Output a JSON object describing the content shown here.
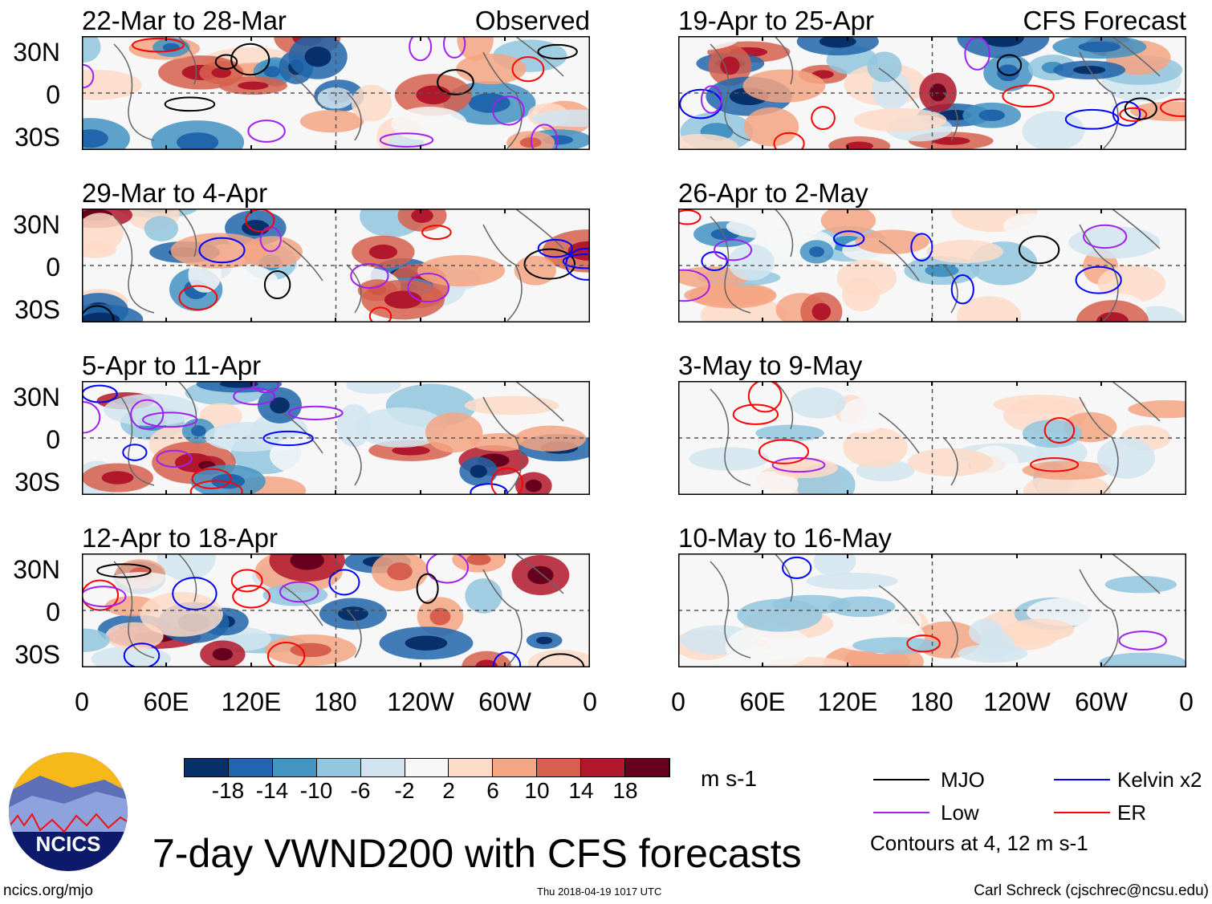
{
  "figure_title": "7-day VWND200 with CFS forecasts",
  "observed_label": "Observed",
  "forecast_label": "CFS Forecast",
  "observed_panels": [
    "22-Mar to 28-Mar",
    "29-Mar to 4-Apr",
    "5-Apr to 11-Apr",
    "12-Apr to 18-Apr"
  ],
  "forecast_panels": [
    "19-Apr to 25-Apr",
    "26-Apr to 2-May",
    "3-May to 9-May",
    "10-May to 16-May"
  ],
  "lat_labels": [
    "30N",
    "0",
    "30S"
  ],
  "lon_labels": [
    "0",
    "60E",
    "120E",
    "180",
    "120W",
    "60W",
    "0"
  ],
  "colorbar": {
    "labels": [
      "-18",
      "-14",
      "-10",
      "-6",
      "-2",
      "2",
      "6",
      "10",
      "14",
      "18"
    ],
    "colors": [
      "#08306b",
      "#2166ac",
      "#4393c3",
      "#92c5de",
      "#d1e5f0",
      "#f7f7f7",
      "#fddbc7",
      "#f4a582",
      "#d6604d",
      "#b2182b",
      "#67001f"
    ],
    "units": "m s-1"
  },
  "legend": {
    "items": [
      {
        "label": "MJO",
        "color": "#000000"
      },
      {
        "label": "Kelvin x2",
        "color": "#0000ff"
      },
      {
        "label": "Low",
        "color": "#a020f0"
      },
      {
        "label": "ER",
        "color": "#ff0000"
      }
    ],
    "contours_note": "Contours at 4, 12 m s-1"
  },
  "logo_text": "NCICS",
  "footer": {
    "url": "ncics.org/mjo",
    "timestamp": "Thu 2018-04-19 1017 UTC",
    "author": "Carl Schreck (cjschrec@ncsu.edu)"
  }
}
